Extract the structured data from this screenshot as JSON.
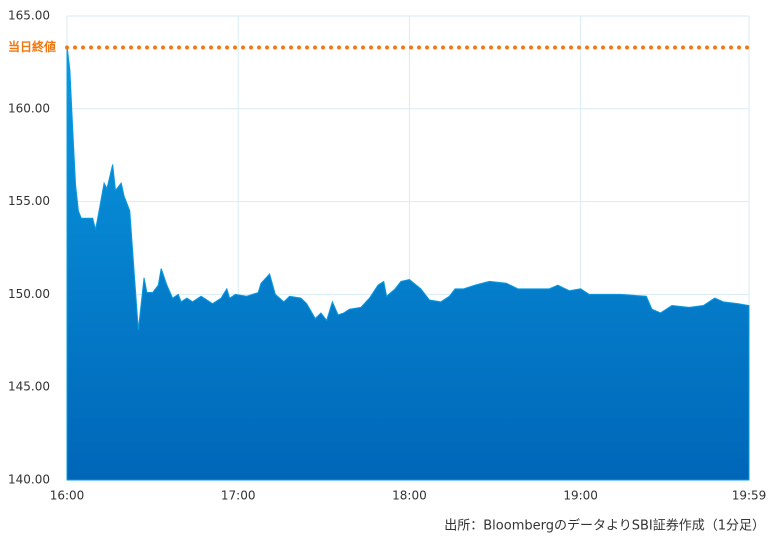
{
  "chart_data": {
    "type": "area",
    "source": "出所：BloombergのデータよりSBI証券作成（1分足）",
    "x": [
      0,
      1,
      2,
      3,
      4,
      5,
      9,
      10,
      11,
      13,
      14,
      16,
      17,
      19,
      20,
      22,
      24,
      25,
      27,
      28,
      30,
      32,
      33,
      35,
      37,
      39,
      40,
      42,
      44,
      47,
      51,
      54,
      56,
      57,
      59,
      63,
      67,
      68,
      71,
      73,
      76,
      78,
      82,
      84,
      87,
      89,
      91,
      93,
      95,
      97,
      99,
      103,
      106,
      109,
      111,
      112,
      115,
      117,
      120,
      124,
      127,
      131,
      134,
      136,
      139,
      143,
      148,
      154,
      158,
      164,
      169,
      172,
      176,
      180,
      183,
      187,
      194,
      203,
      205,
      208,
      212,
      218,
      223,
      227,
      230,
      235,
      239
    ],
    "values": [
      163.4,
      162.1,
      158.9,
      155.9,
      154.5,
      154.1,
      154.1,
      153.5,
      154.3,
      156.0,
      155.7,
      157.0,
      155.6,
      156.0,
      155.3,
      154.5,
      150.2,
      148.1,
      150.9,
      150.1,
      150.1,
      150.5,
      151.4,
      150.5,
      149.8,
      150.0,
      149.6,
      149.8,
      149.6,
      149.9,
      149.5,
      149.8,
      150.3,
      149.8,
      150.0,
      149.9,
      150.1,
      150.6,
      151.1,
      150.0,
      149.6,
      149.9,
      149.8,
      149.5,
      148.7,
      149.0,
      148.6,
      149.6,
      148.9,
      149.0,
      149.2,
      149.3,
      149.8,
      150.5,
      150.7,
      149.9,
      150.3,
      150.7,
      150.8,
      150.3,
      149.7,
      149.6,
      149.9,
      150.3,
      150.3,
      150.5,
      150.7,
      150.6,
      150.3,
      150.3,
      150.3,
      150.5,
      150.2,
      150.3,
      150.0,
      150.0,
      150.0,
      149.9,
      149.2,
      149.0,
      149.4,
      149.3,
      149.4,
      149.8,
      149.6,
      149.5,
      149.4
    ],
    "color": "#0a9ae0",
    "xlim": [
      0,
      239
    ],
    "xticks": [
      {
        "value": 0,
        "label": "16:00"
      },
      {
        "value": 60,
        "label": "17:00"
      },
      {
        "value": 120,
        "label": "18:00"
      },
      {
        "value": 180,
        "label": "19:00"
      },
      {
        "value": 239,
        "label": "19:59"
      }
    ],
    "ylim": [
      140,
      165
    ],
    "yticks": [
      {
        "value": 140,
        "label": "140.00"
      },
      {
        "value": 145,
        "label": "145.00"
      },
      {
        "value": 150,
        "label": "150.00"
      },
      {
        "value": 155,
        "label": "155.00"
      },
      {
        "value": 160,
        "label": "160.00"
      },
      {
        "value": 165,
        "label": "165.00"
      }
    ],
    "grid": true,
    "reference_line": {
      "value": 163.3,
      "label": "当日終値",
      "color": "#f07810"
    }
  }
}
